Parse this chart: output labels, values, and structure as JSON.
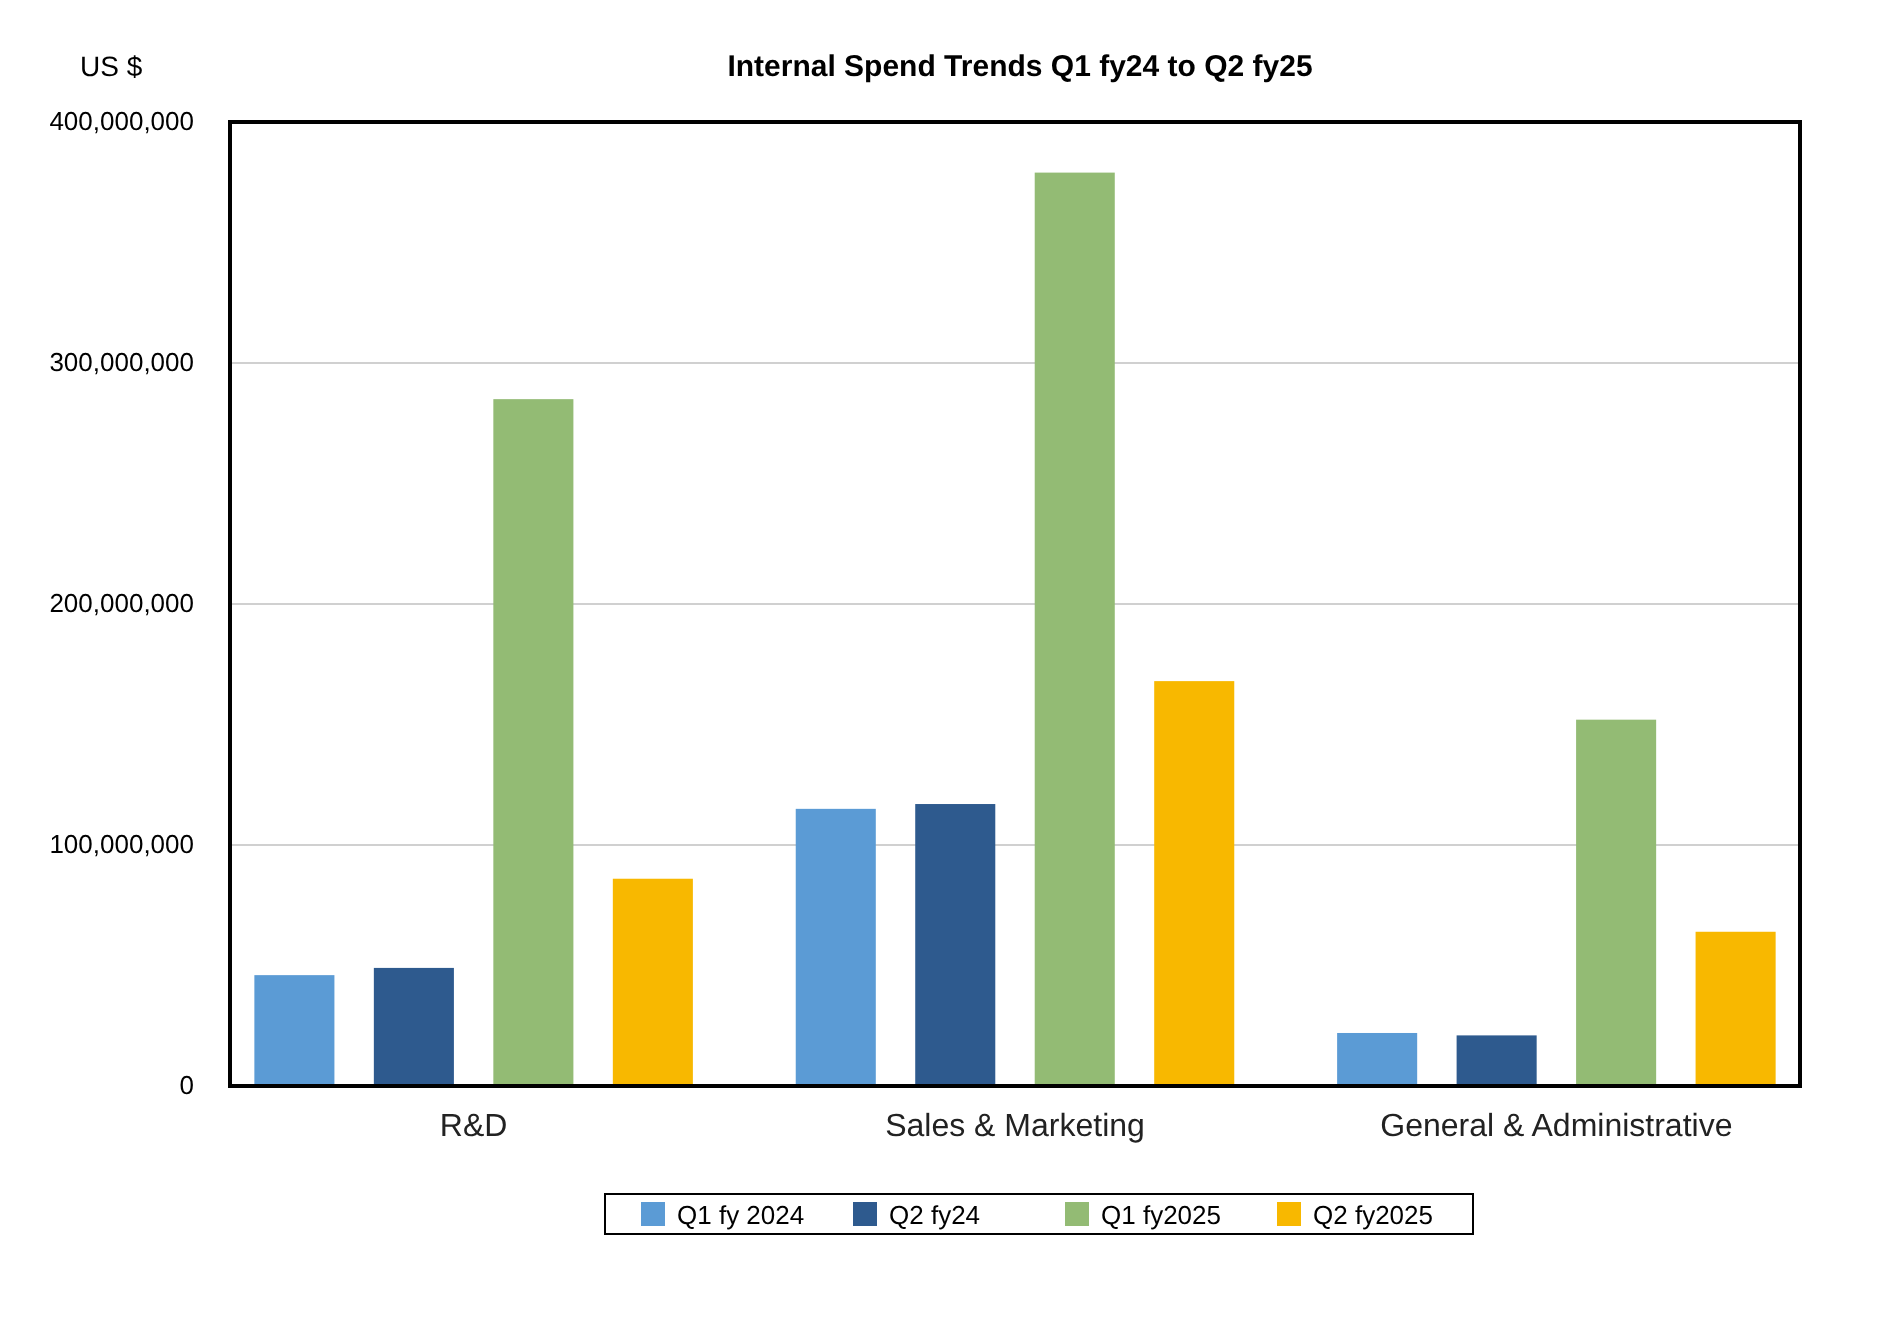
{
  "chart_data": {
    "type": "bar",
    "title": "Internal Spend Trends Q1 fy24 to Q2 fy25",
    "ylabel": "US $",
    "categories": [
      "R&D",
      "Sales & Marketing",
      "General & Administrative"
    ],
    "series": [
      {
        "name": "Q1 fy 2024",
        "color": "#5b9bd5",
        "values": [
          46000000,
          115000000,
          22000000
        ]
      },
      {
        "name": "Q2 fy24",
        "color": "#2e5a8e",
        "values": [
          49000000,
          117000000,
          21000000
        ]
      },
      {
        "name": "Q1 fy2025",
        "color": "#93bb74",
        "values": [
          285000000,
          379000000,
          152000000
        ]
      },
      {
        "name": "Q2 fy2025",
        "color": "#f8b800",
        "values": [
          86000000,
          168000000,
          64000000
        ]
      }
    ],
    "ylim": [
      0,
      400000000
    ],
    "yticks": [
      {
        "value": 0,
        "label": "0"
      },
      {
        "value": 100000000,
        "label": "100,000,000"
      },
      {
        "value": 200000000,
        "label": "200,000,000"
      },
      {
        "value": 300000000,
        "label": "300,000,000"
      },
      {
        "value": 400000000,
        "label": "400,000,000"
      }
    ],
    "grid": "y",
    "legend": "bottom"
  }
}
